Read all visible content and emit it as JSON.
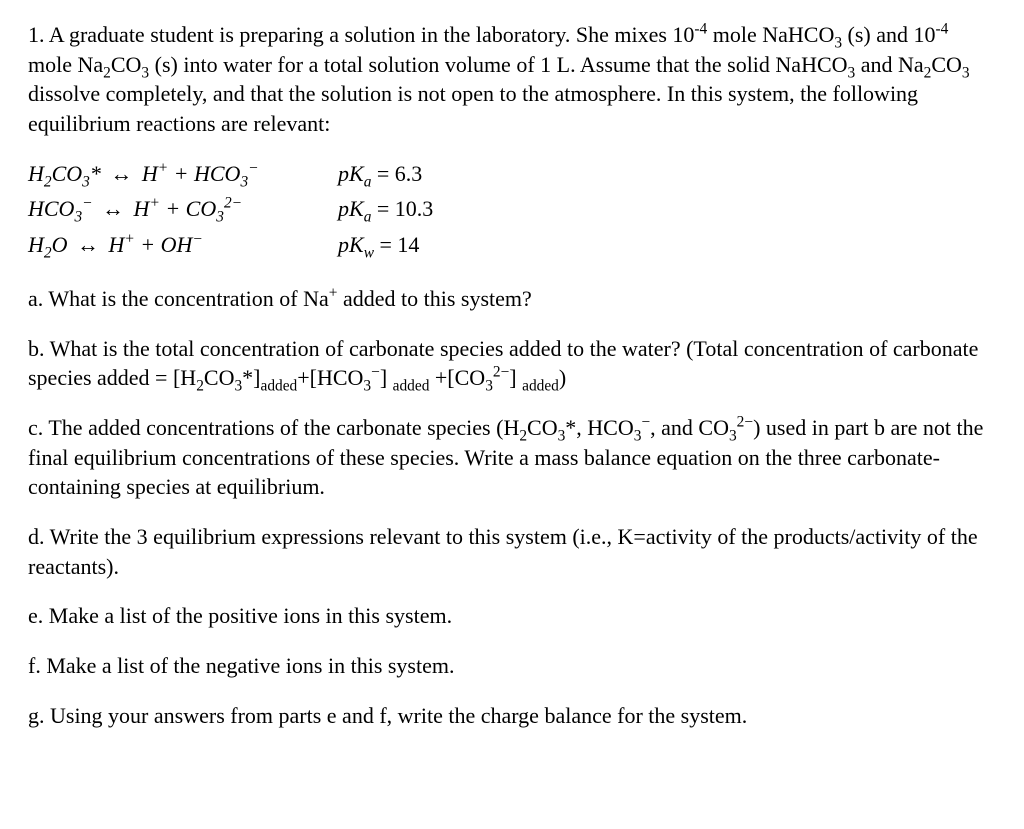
{
  "intro": {
    "line1_a": "1. A graduate student is preparing a solution in the laboratory.  She mixes 10",
    "line1_exp": "-4",
    "line1_b": " mole NaHCO",
    "line1_sub": "3",
    "line1_c": " (s)",
    "line2_a": "and 10",
    "line2_exp": "-4",
    "line2_b": " mole Na",
    "line2_sub1": "2",
    "line2_c": "CO",
    "line2_sub2": "3",
    "line2_d": " (s) into water for a total solution volume of 1 L.  Assume that the solid",
    "line3_a": "NaHCO",
    "line3_sub1": "3",
    "line3_b": " and Na",
    "line3_sub2": "2",
    "line3_c": "CO",
    "line3_sub3": "3",
    "line3_d": " dissolve completely, and that the solution is not open to the atmosphere.",
    "line4": "In this system, the following equilibrium reactions are relevant:"
  },
  "eq1": {
    "lhs_a": "H",
    "lhs_sub1": "2",
    "lhs_b": "CO",
    "lhs_sub2": "3",
    "lhs_star": "*",
    "rhs_a": "H",
    "rhs_sup1": "+",
    "rhs_b": " + HCO",
    "rhs_sub1": "3",
    "rhs_sup2": "−",
    "pk_label": "pK",
    "pk_sub": "a",
    "pk_eq": " = 6.3"
  },
  "eq2": {
    "lhs_a": "HCO",
    "lhs_sub1": "3",
    "lhs_sup1": "−",
    "rhs_a": "H",
    "rhs_sup1": "+",
    "rhs_b": " + CO",
    "rhs_sub1": "3",
    "rhs_sup2": "2−",
    "pk_label": "pK",
    "pk_sub": "a",
    "pk_eq": " = 10.3"
  },
  "eq3": {
    "lhs_a": "H",
    "lhs_sub1": "2",
    "lhs_b": "O",
    "rhs_a": "H",
    "rhs_sup1": "+",
    "rhs_b": " + OH",
    "rhs_sup2": "−",
    "pk_label": "pK",
    "pk_sub": "w",
    "pk_eq": " = 14"
  },
  "qa": {
    "a": "a.  What is the concentration of Na",
    "sup": "+",
    "b": " added to this system?"
  },
  "qb": {
    "line1": "b.  What is the total concentration of carbonate species added to the water?  (Total concentration",
    "line2_a": "of carbonate species added = [H",
    "sub1": "2",
    "line2_b": "CO",
    "sub2": "3",
    "line2_c": "*]",
    "added1": "added",
    "line2_d": "+[HCO",
    "sub3": "3",
    "sup1": "−",
    "line2_e": "] ",
    "added2": "added",
    "line2_f": " +[CO",
    "sub4": "3",
    "sup2": "2−",
    "line2_g": "] ",
    "added3": "added",
    "line2_h": ")"
  },
  "qc": {
    "line1_a": "c.  The added concentrations of the carbonate species (H",
    "sub1": "2",
    "line1_b": "CO",
    "sub2": "3",
    "star": "*, HCO",
    "sub3": "3",
    "sup1": "−",
    "line1_c": ", and CO",
    "sub4": "3",
    "sup2": "2−",
    "line1_d": ") used in part b",
    "line2": "are not the final equilibrium concentrations of these species.  Write a mass balance equation on",
    "line3": "the three carbonate-containing species at equilibrium."
  },
  "qd": {
    "line1": "d.  Write the 3 equilibrium expressions relevant to this system (i.e., K=activity of the",
    "line2": "products/activity of the reactants)."
  },
  "qe": "e.  Make a list of the positive ions in this system.",
  "qf": "f.  Make a list of the negative ions in this system.",
  "qg": "g.  Using your answers from parts e and f, write the charge balance for the system.",
  "arrow": "↔"
}
